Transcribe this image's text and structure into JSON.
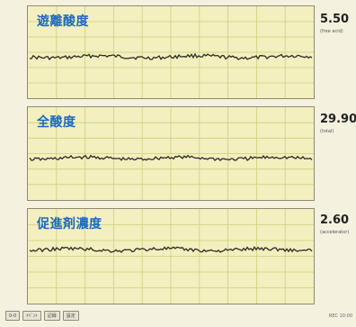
{
  "panels": [
    {
      "title": "遊離酸度",
      "value": "5.50",
      "sub": "(free acid)"
    },
    {
      "title": "全酸度",
      "value": "29.90",
      "sub": "(total)"
    },
    {
      "title": "促進剤濃度",
      "value": "2.60",
      "sub": "(accelerator)"
    }
  ],
  "bottom_buttons": [
    "0-0",
    "ｲﾍﾞﾝﾄ",
    "記録",
    "設定"
  ],
  "status_text": "REC 10:00",
  "colors": {
    "panel_bg": "#f3efbf",
    "grid_line": "#c9d27a",
    "trace": "#2b2b22",
    "title": "#1a68c4"
  }
}
